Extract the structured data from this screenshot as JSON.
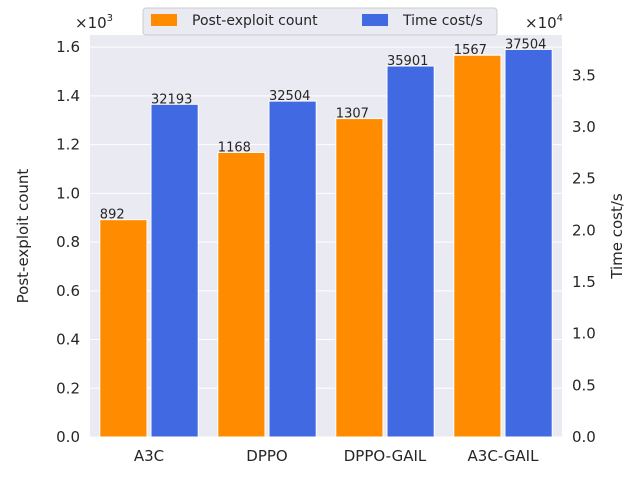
{
  "chart_data": {
    "type": "bar",
    "categories": [
      "A3C",
      "DPPO",
      "DPPO-GAIL",
      "A3C-GAIL"
    ],
    "series": [
      {
        "name": "Post-exploit count",
        "values": [
          892,
          1168,
          1307,
          1567
        ],
        "labels": [
          "892",
          "1168",
          "1307",
          "1567"
        ],
        "axis": "left",
        "color": "#ff8c00"
      },
      {
        "name": "Time cost/s",
        "values": [
          32193,
          32504,
          35901,
          37504
        ],
        "labels": [
          "32193",
          "32504",
          "35901",
          "37504"
        ],
        "axis": "right",
        "color": "#4169e1"
      }
    ],
    "ylabel_left": "Post-exploit count",
    "ylabel_right": "Time cost/s",
    "ylim_left": [
      0,
      1650
    ],
    "ylim_right": [
      0,
      38900
    ],
    "yticks_left": [
      "0.0",
      "0.2",
      "0.4",
      "0.6",
      "0.8",
      "1.0",
      "1.2",
      "1.4",
      "1.6"
    ],
    "yticks_right": [
      "0.0",
      "0.5",
      "1.0",
      "1.5",
      "2.0",
      "2.5",
      "3.0",
      "3.5"
    ],
    "offset_left_base": "×10",
    "offset_left_exp": "3",
    "offset_right_base": "×10",
    "offset_right_exp": "4",
    "legend_position": "top-center",
    "grid": true,
    "background_color": "#eaeaf2"
  }
}
